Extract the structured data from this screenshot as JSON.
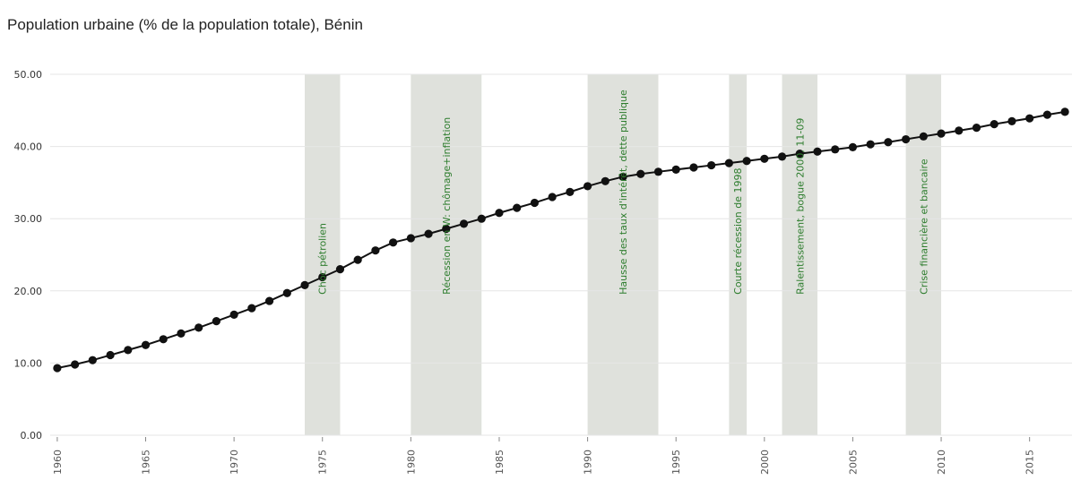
{
  "chart_data": {
    "type": "line",
    "title": "Population urbaine (% de la population totale), Bénin",
    "xlabel": "",
    "ylabel": "",
    "xlim": [
      1959.6,
      2017.4
    ],
    "ylim": [
      0,
      50
    ],
    "y_ticks": [
      0,
      10,
      20,
      30,
      40,
      50
    ],
    "y_tick_labels": [
      "0.00",
      "10.00",
      "20.00",
      "30.00",
      "40.00",
      "50.00"
    ],
    "x_ticks": [
      1960,
      1965,
      1970,
      1975,
      1980,
      1985,
      1990,
      1995,
      2000,
      2005,
      2010,
      2015
    ],
    "x_tick_labels": [
      "1960",
      "1965",
      "1970",
      "1975",
      "1980",
      "1985",
      "1990",
      "1995",
      "2000",
      "2005",
      "2010",
      "2015"
    ],
    "grid": "horizontal",
    "series": [
      {
        "x": [
          1960,
          1961,
          1962,
          1963,
          1964,
          1965,
          1966,
          1967,
          1968,
          1969,
          1970,
          1971,
          1972,
          1973,
          1974,
          1975,
          1976,
          1977,
          1978,
          1979,
          1980,
          1981,
          1982,
          1983,
          1984,
          1985,
          1986,
          1987,
          1988,
          1989,
          1990,
          1991,
          1992,
          1993,
          1994,
          1995,
          1996,
          1997,
          1998,
          1999,
          2000,
          2001,
          2002,
          2003,
          2004,
          2005,
          2006,
          2007,
          2008,
          2009,
          2010,
          2011,
          2012,
          2013,
          2014,
          2015,
          2016,
          2017
        ],
        "values": [
          9.3,
          9.8,
          10.4,
          11.1,
          11.8,
          12.5,
          13.3,
          14.1,
          14.9,
          15.8,
          16.7,
          17.6,
          18.6,
          19.7,
          20.8,
          21.9,
          23.0,
          24.3,
          25.6,
          26.7,
          27.3,
          27.9,
          28.6,
          29.3,
          30.0,
          30.8,
          31.5,
          32.2,
          33.0,
          33.7,
          34.5,
          35.2,
          35.8,
          36.2,
          36.5,
          36.8,
          37.1,
          37.4,
          37.7,
          38.0,
          38.3,
          38.6,
          39.0,
          39.3,
          39.6,
          39.9,
          40.3,
          40.6,
          41.0,
          41.4,
          41.8,
          42.2,
          42.6,
          43.1,
          43.5,
          43.9,
          44.4,
          44.8
        ],
        "color": "#111111"
      }
    ],
    "bands": [
      {
        "start": 1974,
        "end": 1976,
        "label": "Choc pétrolien"
      },
      {
        "start": 1980,
        "end": 1984,
        "label": "Récession en W: chômage+inflation"
      },
      {
        "start": 1990,
        "end": 1994,
        "label": "Hausse des taux d'intérêt, dette publique"
      },
      {
        "start": 1998,
        "end": 1999,
        "label": "Courte récession de 1998"
      },
      {
        "start": 2001,
        "end": 2003,
        "label": "Ralentissement, bogue 2000, 11-09"
      },
      {
        "start": 2008,
        "end": 2010,
        "label": "Crise financière et bancaire"
      }
    ],
    "colors": {
      "band": "#dfe1dc",
      "band_label": "#2e7d2e",
      "line": "#111111",
      "grid": "#e6e6e6"
    }
  }
}
